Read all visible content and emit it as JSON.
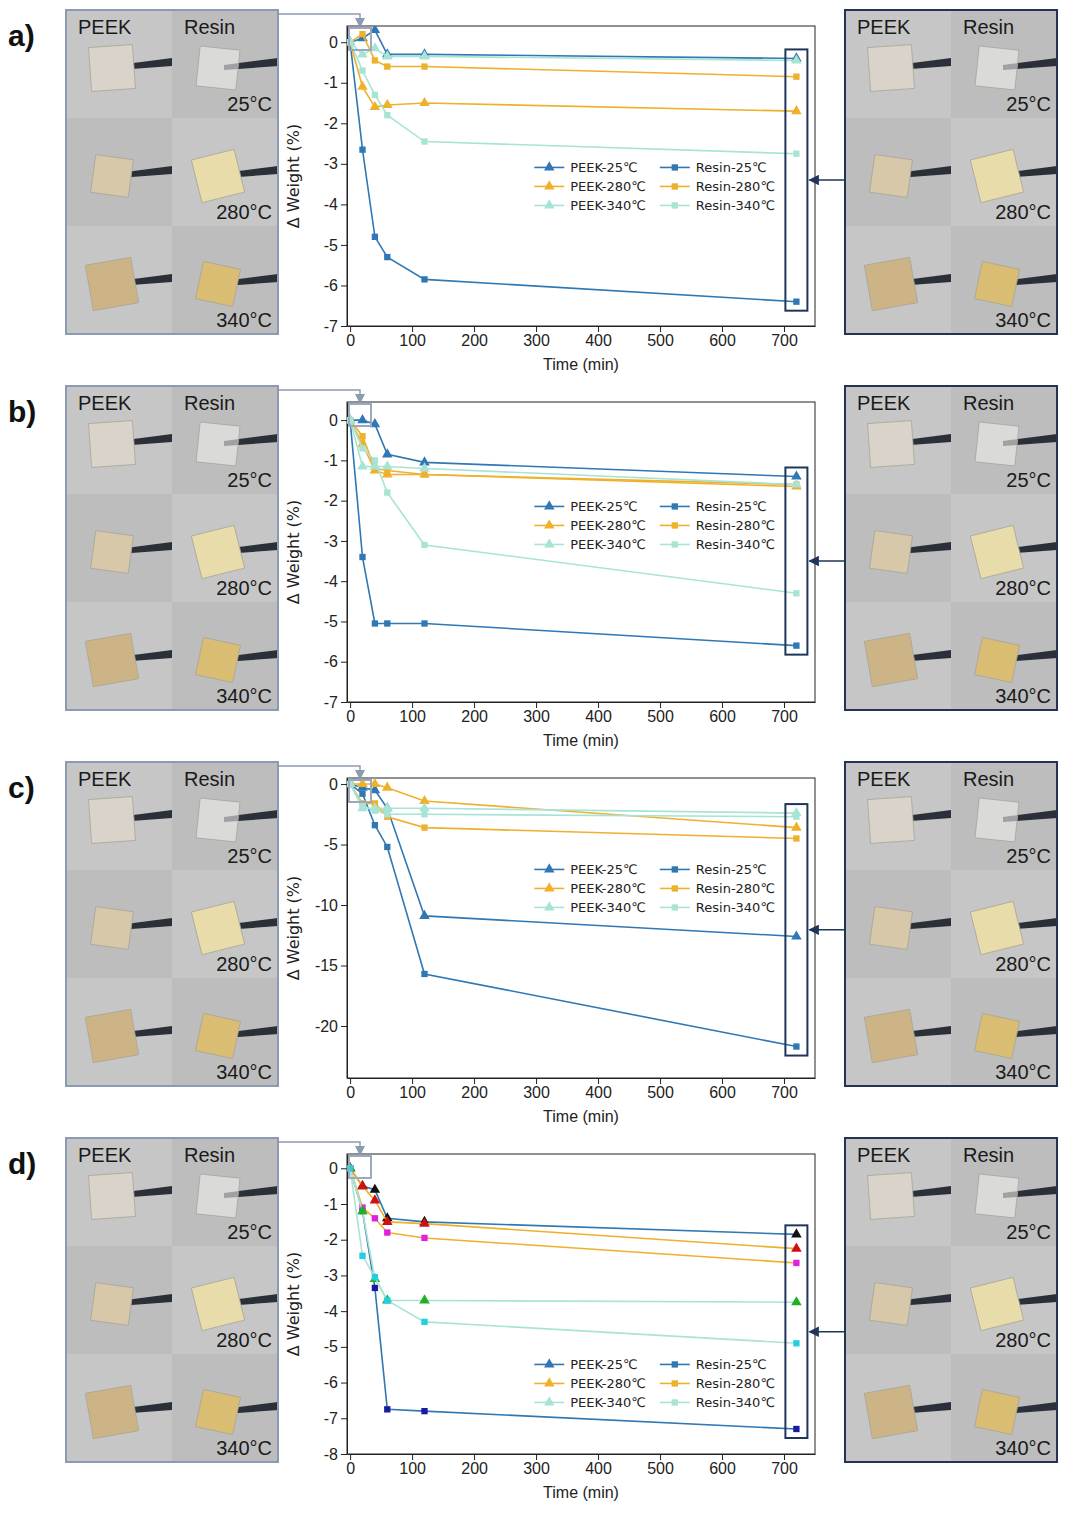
{
  "panels": [
    {
      "label": "a)",
      "photos_left": {
        "columns": [
          "PEEK",
          "Resin"
        ],
        "rows": [
          "25°C",
          "280°C",
          "340°C"
        ]
      },
      "photos_right": {
        "columns": [
          "PEEK",
          "Resin"
        ],
        "rows": [
          "25°C",
          "280°C",
          "340°C"
        ]
      }
    },
    {
      "label": "b)",
      "photos_left": {
        "columns": [
          "PEEK",
          "Resin"
        ],
        "rows": [
          "25°C",
          "280°C",
          "340°C"
        ]
      },
      "photos_right": {
        "columns": [
          "PEEK",
          "Resin"
        ],
        "rows": [
          "25°C",
          "280°C",
          "340°C"
        ]
      }
    },
    {
      "label": "c)",
      "photos_left": {
        "columns": [
          "PEEK",
          "Resin"
        ],
        "rows": [
          "25°C",
          "280°C",
          "340°C"
        ]
      },
      "photos_right": {
        "columns": [
          "PEEK",
          "Resin"
        ],
        "rows": [
          "25°C",
          "280°C",
          "340°C"
        ]
      }
    },
    {
      "label": "d)",
      "photos_left": {
        "columns": [
          "PEEK",
          "Resin"
        ],
        "rows": [
          "25°C",
          "280°C",
          "340°C"
        ]
      },
      "photos_right": {
        "columns": [
          "PEEK",
          "Resin"
        ],
        "rows": [
          "25°C",
          "280°C",
          "340°C"
        ]
      }
    }
  ],
  "chart_data": [
    {
      "type": "line",
      "x_label": "Time (min)",
      "y_label": "Δ Weight (%)",
      "x": [
        0,
        20,
        40,
        60,
        120,
        720
      ],
      "xlim": [
        -5,
        750
      ],
      "xticks": [
        0,
        100,
        200,
        300,
        400,
        500,
        600,
        700
      ],
      "ylim": [
        -7,
        0.4
      ],
      "yticks": [
        0,
        -1,
        -2,
        -3,
        -4,
        -5,
        -6,
        -7
      ],
      "grid": false,
      "legend": "right",
      "series": [
        {
          "name": "PEEK-25℃",
          "color": "#2f78b4",
          "marker": "triangle",
          "values": [
            0,
            0.1,
            0.3,
            -0.3,
            -0.3,
            -0.4
          ]
        },
        {
          "name": "Resin-25℃",
          "color": "#2f78b4",
          "marker": "square",
          "values": [
            0,
            -2.65,
            -4.8,
            -5.3,
            -5.85,
            -6.4
          ]
        },
        {
          "name": "PEEK-280℃",
          "color": "#efb02c",
          "marker": "triangle",
          "values": [
            0,
            -1.1,
            -1.6,
            -1.55,
            -1.5,
            -1.7
          ]
        },
        {
          "name": "Resin-280℃",
          "color": "#efb02c",
          "marker": "square",
          "values": [
            0,
            0.2,
            -0.45,
            -0.6,
            -0.6,
            -0.85
          ]
        },
        {
          "name": "PEEK-340℃",
          "color": "#a8e4d6",
          "marker": "triangle",
          "values": [
            0,
            -0.3,
            -0.15,
            -0.35,
            -0.35,
            -0.45
          ]
        },
        {
          "name": "Resin-340℃",
          "color": "#a8e4d6",
          "marker": "square",
          "values": [
            0,
            -0.7,
            -1.3,
            -1.8,
            -2.45,
            -2.75
          ]
        }
      ]
    },
    {
      "type": "line",
      "x_label": "Time (min)",
      "y_label": "Δ Weight (%)",
      "x": [
        0,
        20,
        40,
        60,
        120,
        720
      ],
      "xlim": [
        -5,
        750
      ],
      "xticks": [
        0,
        100,
        200,
        300,
        400,
        500,
        600,
        700
      ],
      "ylim": [
        -7,
        0.45
      ],
      "yticks": [
        0,
        -1,
        -2,
        -3,
        -4,
        -5,
        -6,
        -7
      ],
      "grid": false,
      "legend": "right",
      "series": [
        {
          "name": "PEEK-25℃",
          "color": "#2f78b4",
          "marker": "triangle",
          "values": [
            0,
            0,
            -0.1,
            -0.85,
            -1.05,
            -1.4
          ]
        },
        {
          "name": "Resin-25℃",
          "color": "#2f78b4",
          "marker": "square",
          "values": [
            0,
            -3.4,
            -5.05,
            -5.05,
            -5.05,
            -5.6
          ]
        },
        {
          "name": "PEEK-280℃",
          "color": "#efb02c",
          "marker": "triangle",
          "values": [
            0,
            -0.6,
            -1.25,
            -1.35,
            -1.35,
            -1.65
          ]
        },
        {
          "name": "Resin-280℃",
          "color": "#efb02c",
          "marker": "square",
          "values": [
            0,
            -0.4,
            -1.2,
            -1.25,
            -1.35,
            -1.6
          ]
        },
        {
          "name": "PEEK-340℃",
          "color": "#a8e4d6",
          "marker": "triangle",
          "values": [
            0,
            -1.15,
            -1.15,
            -1.15,
            -1.2,
            -1.6
          ]
        },
        {
          "name": "Resin-340℃",
          "color": "#a8e4d6",
          "marker": "square",
          "values": [
            0,
            -0.7,
            -1.0,
            -1.8,
            -3.1,
            -4.3
          ]
        }
      ]
    },
    {
      "type": "line",
      "x_label": "Time (min)",
      "y_label": "Δ Weight (%)",
      "x": [
        0,
        20,
        40,
        60,
        120,
        720
      ],
      "xlim": [
        -5,
        750
      ],
      "xticks": [
        0,
        100,
        200,
        300,
        400,
        500,
        600,
        700
      ],
      "ylim": [
        -24.3,
        0.5
      ],
      "yticks": [
        0,
        -5,
        -10,
        -15,
        -20
      ],
      "grid": false,
      "legend": "right",
      "series": [
        {
          "name": "PEEK-25℃",
          "color": "#2f78b4",
          "marker": "triangle",
          "values": [
            0,
            -0.3,
            -0.5,
            -2.0,
            -10.9,
            -12.6
          ]
        },
        {
          "name": "Resin-25℃",
          "color": "#2f78b4",
          "marker": "square",
          "values": [
            0,
            -0.8,
            -3.4,
            -5.2,
            -15.7,
            -21.7
          ]
        },
        {
          "name": "PEEK-280℃",
          "color": "#efb02c",
          "marker": "triangle",
          "values": [
            0,
            0,
            0,
            -0.3,
            -1.4,
            -3.6
          ]
        },
        {
          "name": "Resin-280℃",
          "color": "#efb02c",
          "marker": "square",
          "values": [
            0,
            -1.6,
            -1.6,
            -2.7,
            -3.6,
            -4.5
          ]
        },
        {
          "name": "PEEK-340℃",
          "color": "#a8e4d6",
          "marker": "triangle",
          "values": [
            0,
            -2.0,
            -2.0,
            -2.0,
            -2.0,
            -2.4
          ]
        },
        {
          "name": "Resin-340℃",
          "color": "#a8e4d6",
          "marker": "square",
          "values": [
            0,
            -1.8,
            -2.2,
            -2.5,
            -2.5,
            -2.7
          ]
        }
      ]
    },
    {
      "type": "line",
      "x_label": "Time (min)",
      "y_label": "Δ Weight (%)",
      "x": [
        0,
        20,
        40,
        60,
        120,
        720
      ],
      "xlim": [
        -5,
        750
      ],
      "xticks": [
        0,
        100,
        200,
        300,
        400,
        500,
        600,
        700
      ],
      "ylim": [
        -8,
        0.4
      ],
      "yticks": [
        0,
        -1,
        -2,
        -3,
        -4,
        -5,
        -6,
        -7,
        -8
      ],
      "grid": false,
      "legend": "lower right",
      "series": [
        {
          "name": "PEEK-25℃",
          "color": "#2f78b4",
          "marker": "triangle",
          "values": [
            0,
            -0.5,
            -0.6,
            -1.4,
            -1.5,
            -1.85
          ],
          "colors": [
            "#111111",
            "#111111",
            "#111111",
            "#111111",
            "#111111",
            "#111111"
          ]
        },
        {
          "name": "Resin-25℃",
          "color": "#2f78b4",
          "marker": "square",
          "values": [
            0,
            -1.2,
            -3.35,
            -6.75,
            -6.8,
            -7.3
          ],
          "colors": [
            "#1a1aa0",
            "#1a1aa0",
            "#1a1aa0",
            "#1a1aa0",
            "#1a1aa0",
            "#1a1aa0"
          ]
        },
        {
          "name": "PEEK-280℃",
          "color": "#efb02c",
          "marker": "triangle",
          "values": [
            0,
            -0.5,
            -0.9,
            -1.5,
            -1.55,
            -2.25
          ],
          "colors": [
            "#d01010",
            "#d01010",
            "#d01010",
            "#d01010",
            "#d01010",
            "#d01010"
          ]
        },
        {
          "name": "Resin-280℃",
          "color": "#efb02c",
          "marker": "square",
          "values": [
            0,
            -1.1,
            -1.4,
            -1.8,
            -1.95,
            -2.65
          ],
          "colors": [
            "#e020e0",
            "#e020e0",
            "#e020e0",
            "#e020e0",
            "#e020e0",
            "#e020e0"
          ]
        },
        {
          "name": "PEEK-340℃",
          "color": "#a8e4d6",
          "marker": "triangle",
          "values": [
            0,
            -1.2,
            -3.1,
            -3.7,
            -3.7,
            -3.75
          ],
          "colors": [
            "#20b020",
            "#20b020",
            "#20b020",
            "#20b020",
            "#20b020",
            "#20b020"
          ]
        },
        {
          "name": "Resin-340℃",
          "color": "#a8e4d6",
          "marker": "square",
          "values": [
            0,
            -2.45,
            -3.05,
            -3.7,
            -4.3,
            -4.9
          ],
          "colors": [
            "#20d0e0",
            "#20d0e0",
            "#20d0e0",
            "#20d0e0",
            "#20d0e0",
            "#20d0e0"
          ]
        }
      ]
    }
  ]
}
